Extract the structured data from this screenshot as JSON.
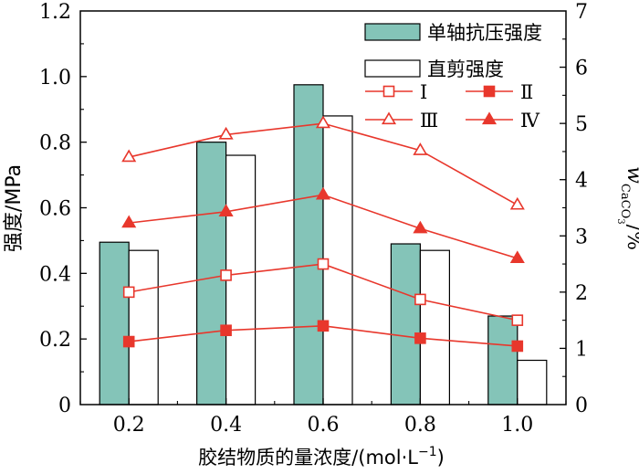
{
  "chart_data": {
    "type": "bar",
    "categories": [
      "0.2",
      "0.4",
      "0.6",
      "0.8",
      "1.0"
    ],
    "xlabel": "胶结物质的量浓度/(mol·L",
    "xlabel_sup": "−1",
    "xlabel_tail": ")",
    "ylabel": "强度/MPa",
    "y2label_main": "w",
    "y2label_sub": "CaCO",
    "y2label_subsub": "3",
    "y2label_tail": "/%",
    "ylim": [
      0,
      1.2
    ],
    "y2lim": [
      0,
      7
    ],
    "yticks": [
      "0",
      "0.2",
      "0.4",
      "0.6",
      "0.8",
      "1.0",
      "1.2"
    ],
    "y2ticks": [
      "0",
      "1",
      "2",
      "3",
      "4",
      "5",
      "6",
      "7"
    ],
    "bar_series": [
      {
        "name": "单轴抗压强度",
        "values": [
          0.495,
          0.8,
          0.975,
          0.49,
          0.27
        ],
        "color": "#84c4b8"
      },
      {
        "name": "直剪强度",
        "values": [
          0.47,
          0.76,
          0.88,
          0.47,
          0.135
        ],
        "color": "#ffffff"
      }
    ],
    "line_series": [
      {
        "name": "Ⅰ",
        "values": [
          2.0,
          2.3,
          2.5,
          1.87,
          1.5
        ],
        "marker": "square-open"
      },
      {
        "name": "Ⅱ",
        "values": [
          1.12,
          1.32,
          1.4,
          1.18,
          1.04
        ],
        "marker": "square-filled"
      },
      {
        "name": "Ⅲ",
        "values": [
          4.4,
          4.8,
          5.0,
          4.52,
          3.55
        ],
        "marker": "triangle-open"
      },
      {
        "name": "Ⅳ",
        "values": [
          3.23,
          3.43,
          3.73,
          3.13,
          2.6
        ],
        "marker": "triangle-filled"
      }
    ],
    "line_color": "#e8372c",
    "legend_position": "top-right"
  }
}
